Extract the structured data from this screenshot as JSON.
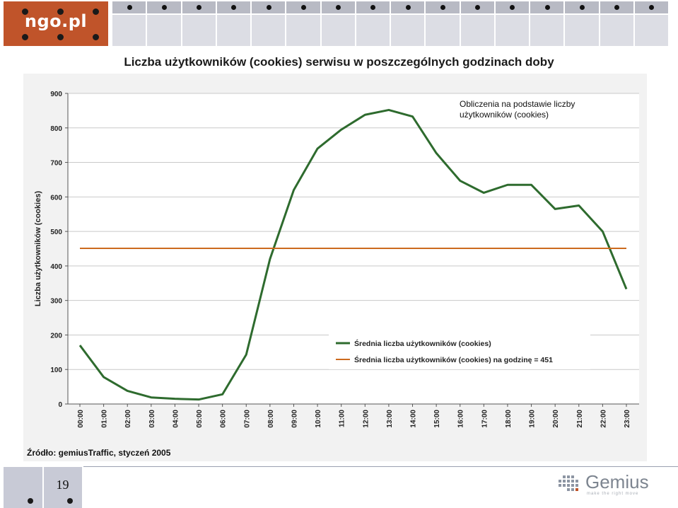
{
  "header": {
    "logo_text": "ngo.pl",
    "title": "Liczba użytkowników (cookies) serwisu w poszczególnych godzinach doby"
  },
  "annotation": {
    "line1": "Obliczenia na podstawie liczby",
    "line2": "użytkowników (cookies)"
  },
  "footer": {
    "source": "Źródło: gemiusTraffic, styczeń 2005",
    "page_number": "19",
    "brand": "Gemius",
    "brand_tagline": "make the right move"
  },
  "colors": {
    "series_line": "#2e6b2e",
    "average_line": "#cc6a1e",
    "logo_bg": "#c0542a"
  },
  "chart_data": {
    "type": "line",
    "ylabel": "Liczba użytkowników (cookies)",
    "xlabel": "",
    "ylim": [
      0,
      900
    ],
    "yticks": [
      0,
      100,
      200,
      300,
      400,
      500,
      600,
      700,
      800,
      900
    ],
    "grid": true,
    "legend_position": "bottom-right",
    "categories": [
      "00:00",
      "01:00",
      "02:00",
      "03:00",
      "04:00",
      "05:00",
      "06:00",
      "07:00",
      "08:00",
      "09:00",
      "10:00",
      "11:00",
      "12:00",
      "13:00",
      "14:00",
      "15:00",
      "16:00",
      "17:00",
      "18:00",
      "19:00",
      "20:00",
      "21:00",
      "22:00",
      "23:00"
    ],
    "series": [
      {
        "name": "Średnia liczba użytkowników (cookies)",
        "values": [
          170,
          78,
          38,
          19,
          15,
          13,
          28,
          143,
          420,
          620,
          740,
          795,
          838,
          852,
          833,
          727,
          647,
          612,
          635,
          635,
          565,
          575,
          500,
          333
        ]
      },
      {
        "name": "Średnia liczba użytkowników (cookies) na godzinę = 451",
        "values": [
          451,
          451,
          451,
          451,
          451,
          451,
          451,
          451,
          451,
          451,
          451,
          451,
          451,
          451,
          451,
          451,
          451,
          451,
          451,
          451,
          451,
          451,
          451,
          451
        ]
      }
    ]
  }
}
